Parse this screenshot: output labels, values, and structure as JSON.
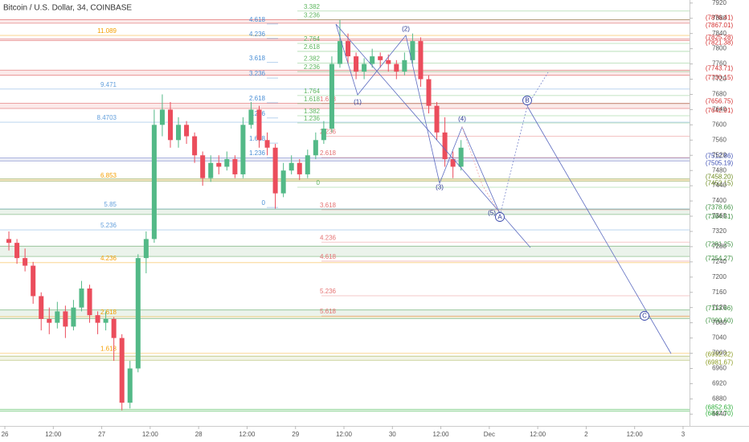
{
  "chart_data": {
    "type": "candlestick",
    "title": "Bitcoin / U.S. Dollar, 34, COINBASE",
    "x": [
      1,
      3,
      5,
      7,
      9,
      11,
      13,
      15,
      17,
      19,
      21,
      23,
      25,
      27,
      29,
      31,
      33,
      35,
      37,
      39,
      41,
      43,
      45,
      47,
      49,
      51,
      53,
      55,
      57,
      59,
      61,
      63,
      65,
      67,
      69,
      71,
      73,
      75,
      77,
      79,
      81,
      83,
      85,
      87,
      89,
      91,
      93,
      95,
      97,
      99,
      101,
      103,
      105,
      107,
      109,
      111,
      113
    ],
    "open": [
      7300,
      7290,
      7250,
      7230,
      7150,
      7090,
      7080,
      7110,
      7070,
      7120,
      7170,
      7100,
      7080,
      7090,
      7040,
      6870,
      6960,
      7250,
      7300,
      7600,
      7640,
      7560,
      7600,
      7570,
      7520,
      7460,
      7500,
      7490,
      7510,
      7470,
      7600,
      7640,
      7560,
      7540,
      7420,
      7480,
      7500,
      7470,
      7520,
      7560,
      7590,
      7760,
      7820,
      7780,
      7740,
      7760,
      7780,
      7770,
      7760,
      7740,
      7770,
      7820,
      7720,
      7650,
      7580,
      7510,
      7490
    ],
    "high": [
      7320,
      7300,
      7275,
      7240,
      7160,
      7120,
      7135,
      7125,
      7140,
      7190,
      7180,
      7110,
      7110,
      7095,
      7050,
      6980,
      7260,
      7320,
      7640,
      7680,
      7660,
      7620,
      7610,
      7580,
      7530,
      7520,
      7520,
      7530,
      7520,
      7620,
      7660,
      7650,
      7580,
      7550,
      7500,
      7520,
      7510,
      7535,
      7580,
      7610,
      7780,
      7876,
      7840,
      7790,
      7775,
      7800,
      7790,
      7785,
      7770,
      7790,
      7840,
      7830,
      7730,
      7660,
      7620,
      7530,
      7560
    ],
    "low": [
      7270,
      7235,
      7215,
      7130,
      7060,
      7050,
      7065,
      7040,
      7060,
      7110,
      7080,
      7050,
      7060,
      6980,
      6850,
      6855,
      6950,
      7210,
      7290,
      7570,
      7540,
      7540,
      7550,
      7500,
      7440,
      7450,
      7470,
      7480,
      7460,
      7460,
      7590,
      7540,
      7520,
      7380,
      7410,
      7470,
      7455,
      7460,
      7510,
      7550,
      7580,
      7750,
      7760,
      7720,
      7720,
      7750,
      7750,
      7740,
      7720,
      7730,
      7760,
      7700,
      7630,
      7560,
      7490,
      7460,
      7480
    ],
    "close": [
      7290,
      7250,
      7230,
      7150,
      7090,
      7080,
      7110,
      7070,
      7120,
      7170,
      7100,
      7080,
      7090,
      7040,
      6870,
      6960,
      7250,
      7300,
      7600,
      7640,
      7560,
      7600,
      7570,
      7520,
      7460,
      7500,
      7490,
      7510,
      7470,
      7600,
      7640,
      7560,
      7540,
      7420,
      7480,
      7500,
      7470,
      7520,
      7560,
      7590,
      7760,
      7820,
      7780,
      7740,
      7760,
      7780,
      7770,
      7760,
      7740,
      7770,
      7820,
      7720,
      7650,
      7580,
      7510,
      7490,
      7540
    ],
    "up_color": "#53b987",
    "down_color": "#eb4d5c",
    "xlim": [
      -1.2,
      169.6
    ],
    "xticks": [
      {
        "value": 0,
        "label": "26"
      },
      {
        "value": 12,
        "label": "12:00"
      },
      {
        "value": 24,
        "label": "27"
      },
      {
        "value": 36,
        "label": "12:00"
      },
      {
        "value": 48,
        "label": "28"
      },
      {
        "value": 60,
        "label": "12:00"
      },
      {
        "value": 72,
        "label": "29"
      },
      {
        "value": 84,
        "label": "12:00"
      },
      {
        "value": 96,
        "label": "30"
      },
      {
        "value": 108,
        "label": "12:00"
      },
      {
        "value": 120,
        "label": "Dec"
      },
      {
        "value": 132,
        "label": "12:00"
      },
      {
        "value": 144,
        "label": "2"
      },
      {
        "value": 156,
        "label": "12:00"
      },
      {
        "value": 168,
        "label": "3"
      }
    ],
    "ylim": [
      6809,
      7928
    ],
    "yticks": [
      6840,
      6880,
      6920,
      6960,
      7000,
      7040,
      7080,
      7120,
      7160,
      7200,
      7240,
      7280,
      7320,
      7360,
      7400,
      7440,
      7480,
      7520,
      7560,
      7600,
      7640,
      7680,
      7720,
      7760,
      7800,
      7840,
      7880,
      7920
    ],
    "fib_sets": [
      {
        "color": "#f59f00",
        "levels": [
          {
            "ratio": 11.089,
            "price": 7835
          },
          {
            "ratio": 6.853,
            "price": 7455
          },
          {
            "ratio": 4.236,
            "price": 7238
          },
          {
            "ratio": 2.618,
            "price": 7096
          },
          {
            "ratio": 1.618,
            "price": 7000
          }
        ]
      },
      {
        "color": "#64a0dc",
        "levels": [
          {
            "ratio": 9.471,
            "price": 7694
          },
          {
            "ratio": 8.4703,
            "price": 7607
          },
          {
            "ratio": 5.85,
            "price": 7379
          },
          {
            "ratio": 5.236,
            "price": 7324
          }
        ]
      },
      {
        "color": "#4a8fd6",
        "levels": [
          {
            "ratio": 4.618,
            "price": 7865
          },
          {
            "ratio": 4.236,
            "price": 7827
          },
          {
            "ratio": 3.618,
            "price": 7764
          },
          {
            "ratio": 3.236,
            "price": 7723
          },
          {
            "ratio": 2.618,
            "price": 7658
          },
          {
            "ratio": 2.236,
            "price": 7618
          },
          {
            "ratio": 1.618,
            "price": 7552
          },
          {
            "ratio": 1.236,
            "price": 7514
          },
          {
            "ratio": 0,
            "price": 7383
          }
        ]
      },
      {
        "color": "#5fb760",
        "levels": [
          {
            "ratio": 3.382,
            "price": 7899
          },
          {
            "ratio": 3.236,
            "price": 7876
          },
          {
            "ratio": 2.764,
            "price": 7814
          },
          {
            "ratio": 2.618,
            "price": 7793
          },
          {
            "ratio": 2.382,
            "price": 7762
          },
          {
            "ratio": 2.236,
            "price": 7740
          },
          {
            "ratio": 1.764,
            "price": 7677
          },
          {
            "ratio": 1.618,
            "price": 7656
          },
          {
            "ratio": 1.382,
            "price": 7624
          },
          {
            "ratio": 1.236,
            "price": 7605
          },
          {
            "ratio": 0,
            "price": 7436
          }
        ]
      },
      {
        "color": "#e57373",
        "levels": [
          {
            "ratio": 1.618,
            "price": 7656
          },
          {
            "ratio": 2.236,
            "price": 7570
          },
          {
            "ratio": 2.618,
            "price": 7514
          },
          {
            "ratio": 3.618,
            "price": 7377
          },
          {
            "ratio": 4.236,
            "price": 7292
          },
          {
            "ratio": 4.618,
            "price": 7242
          },
          {
            "ratio": 5.236,
            "price": 7151
          },
          {
            "ratio": 5.618,
            "price": 7098
          }
        ]
      }
    ],
    "zones": [
      {
        "color": "#d32f2f",
        "tags": [
          {
            "value": 7876.41,
            "label": "(7876.41)"
          },
          {
            "value": 7867.01,
            "label": "(7867.01)"
          }
        ]
      },
      {
        "color": "#d32f2f",
        "tags": [
          {
            "value": 7825.28,
            "label": "(7825.28)"
          },
          {
            "value": 7821.38,
            "label": "(7821.38)"
          }
        ]
      },
      {
        "color": "#d32f2f",
        "tags": [
          {
            "value": 7743.71,
            "label": "(7743.71)"
          },
          {
            "value": 7730.15,
            "label": "(7730.15)"
          }
        ]
      },
      {
        "color": "#d32f2f",
        "tags": [
          {
            "value": 7656.75,
            "label": "(7656.75)"
          },
          {
            "value": 7642.91,
            "label": "(7642.91)"
          }
        ]
      },
      {
        "color": "#3f51b5",
        "tags": [
          {
            "value": 7512.86,
            "label": "(7512.86)"
          },
          {
            "value": 7505.19,
            "label": "(7505.19)"
          }
        ]
      },
      {
        "color": "#6d8b1f",
        "tags": [
          {
            "value": 7458.2,
            "label": "(7458.20)"
          },
          {
            "value": 7452.15,
            "label": "(7452.15)"
          }
        ]
      },
      {
        "color": "#388e3c",
        "tags": [
          {
            "value": 7378.66,
            "label": "(7378.66)"
          },
          {
            "value": 7364.51,
            "label": "(7364.51)"
          }
        ]
      },
      {
        "color": "#388e3c",
        "tags": [
          {
            "value": 7281.25,
            "label": "(7281.25)"
          },
          {
            "value": 7254.27,
            "label": "(7254.27)"
          }
        ]
      },
      {
        "color": "#388e3c",
        "tags": [
          {
            "value": 7113.66,
            "label": "(7113.66)"
          },
          {
            "value": 7090.6,
            "label": "(7090.60)"
          }
        ]
      },
      {
        "color": "#8a9a1f",
        "tags": [
          {
            "value": 6992.32,
            "label": "(6992.32)"
          },
          {
            "value": 6981.67,
            "label": "(6981.67)"
          }
        ]
      },
      {
        "color": "#2eaf3a",
        "tags": [
          {
            "value": 6852.63,
            "label": "(6852.63)"
          },
          {
            "value": 6847.7,
            "label": "(6847.70)"
          }
        ]
      }
    ],
    "wave_labels": [
      "(1)",
      "(2)",
      "(3)",
      "(4)",
      "(5)",
      "A",
      "B",
      "C"
    ]
  }
}
